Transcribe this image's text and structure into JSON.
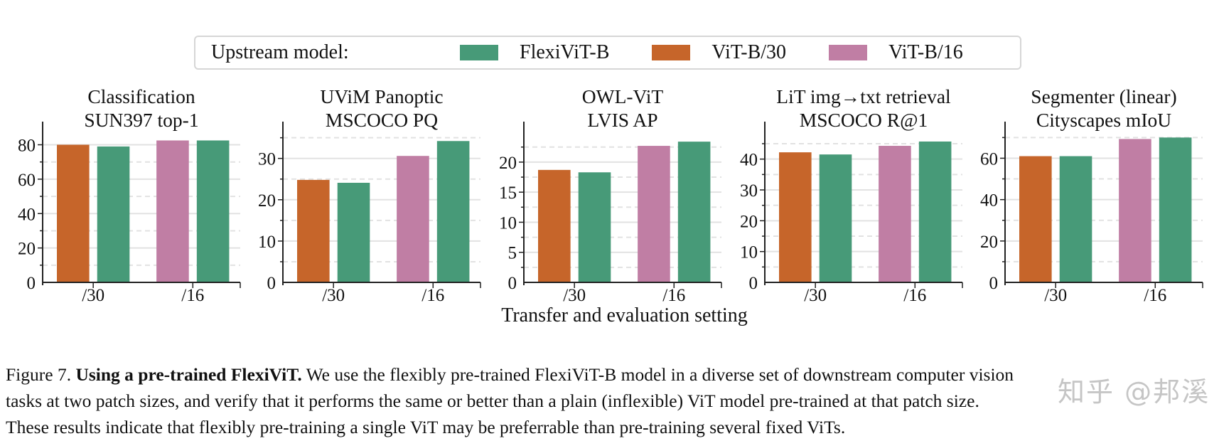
{
  "legend": {
    "title": "Upstream model:",
    "items": [
      {
        "label": "FlexiViT-B",
        "color": "#479a78"
      },
      {
        "label": "ViT-B/30",
        "color": "#c6652a"
      },
      {
        "label": "ViT-B/16",
        "color": "#c07ea4"
      }
    ]
  },
  "xlabel": "Transfer and evaluation setting",
  "caption": {
    "figure_label": "Figure 7.",
    "bold_title": "Using a pre-trained FlexiViT.",
    "line1_rest": "We use the flexibly pre-trained FlexiViT-B model in a diverse set of downstream computer vision",
    "line2": "tasks at two patch sizes, and verify that it performs the same or better than a plain (inflexible) ViT model pre-trained at that patch size.",
    "line3": "These results indicate that flexibly pre-training a single ViT may be preferrable than pre-training several fixed ViTs."
  },
  "watermark": "知乎 @邦溪",
  "chart_data": [
    {
      "type": "bar",
      "title": [
        "Classification",
        "SUN397 top-1"
      ],
      "categories": [
        "/30",
        "/16"
      ],
      "ylim": [
        0,
        86
      ],
      "yticks": [
        0,
        20,
        40,
        60,
        80
      ],
      "minor_step": 10,
      "grid": true,
      "series": [
        {
          "name": "ViT-B/30",
          "values": [
            80.0,
            null
          ]
        },
        {
          "name": "ViT-B/16",
          "values": [
            null,
            82.5
          ]
        },
        {
          "name": "FlexiViT-B",
          "values": [
            79.0,
            82.5
          ]
        }
      ]
    },
    {
      "type": "bar",
      "title": [
        "UViM Panoptic",
        "MSCOCO PQ"
      ],
      "categories": [
        "/30",
        "/16"
      ],
      "ylim": [
        0,
        35.8
      ],
      "yticks": [
        0,
        10,
        20,
        30
      ],
      "minor_step": 5,
      "grid": true,
      "series": [
        {
          "name": "ViT-B/30",
          "values": [
            24.8,
            null
          ]
        },
        {
          "name": "ViT-B/16",
          "values": [
            null,
            30.6
          ]
        },
        {
          "name": "FlexiViT-B",
          "values": [
            24.1,
            34.2
          ]
        }
      ]
    },
    {
      "type": "bar",
      "title": [
        "OWL-ViT",
        "LVIS AP"
      ],
      "categories": [
        "/30",
        "/16"
      ],
      "ylim": [
        0,
        24.6
      ],
      "yticks": [
        0,
        5,
        10,
        15,
        20
      ],
      "minor_step": 2.5,
      "grid": true,
      "series": [
        {
          "name": "ViT-B/30",
          "values": [
            18.7,
            null
          ]
        },
        {
          "name": "ViT-B/16",
          "values": [
            null,
            22.7
          ]
        },
        {
          "name": "FlexiViT-B",
          "values": [
            18.3,
            23.4
          ]
        }
      ]
    },
    {
      "type": "bar",
      "title": [
        "LiT img→txt retrieval",
        "MSCOCO R@1"
      ],
      "categories": [
        "/30",
        "/16"
      ],
      "ylim": [
        0,
        48
      ],
      "yticks": [
        0,
        10,
        20,
        30,
        40
      ],
      "minor_step": 5,
      "grid": true,
      "series": [
        {
          "name": "ViT-B/30",
          "values": [
            42.2,
            null
          ]
        },
        {
          "name": "ViT-B/16",
          "values": [
            null,
            44.3
          ]
        },
        {
          "name": "FlexiViT-B",
          "values": [
            41.5,
            45.7
          ]
        }
      ]
    },
    {
      "type": "bar",
      "title": [
        "Segmenter (linear)",
        "Cityscapes mIoU"
      ],
      "categories": [
        "/30",
        "/16"
      ],
      "ylim": [
        0,
        71.5
      ],
      "yticks": [
        0,
        20,
        40,
        60
      ],
      "minor_step": 10,
      "grid": true,
      "series": [
        {
          "name": "ViT-B/30",
          "values": [
            61.0,
            null
          ]
        },
        {
          "name": "ViT-B/16",
          "values": [
            null,
            69.3
          ]
        },
        {
          "name": "FlexiViT-B",
          "values": [
            61.0,
            70.0
          ]
        }
      ]
    }
  ]
}
